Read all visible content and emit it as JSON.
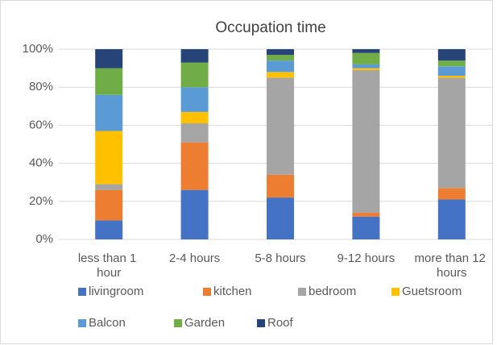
{
  "chart_data": {
    "type": "stacked_bar",
    "title": "Occupation time",
    "categories": [
      "less than 1 hour",
      "2-4 hours",
      "5-8 hours",
      "9-12 hours",
      "more than 12 hours"
    ],
    "series": [
      {
        "name": "livingroom",
        "color": "#4472c4",
        "values": [
          10,
          26,
          22,
          12,
          21
        ]
      },
      {
        "name": "kitchen",
        "color": "#ed7d31",
        "values": [
          16,
          25,
          12,
          2,
          6
        ]
      },
      {
        "name": "bedroom",
        "color": "#a5a5a5",
        "values": [
          3,
          10,
          51,
          75,
          58
        ]
      },
      {
        "name": "Guetsroom",
        "color": "#ffc000",
        "values": [
          28,
          6,
          3,
          1,
          1
        ]
      },
      {
        "name": "Balcon",
        "color": "#5b9bd5",
        "values": [
          19,
          13,
          6,
          2,
          5
        ]
      },
      {
        "name": "Garden",
        "color": "#70ad47",
        "values": [
          14,
          13,
          3,
          6,
          3
        ]
      },
      {
        "name": "Roof",
        "color": "#264478",
        "values": [
          10,
          7,
          3,
          2,
          6
        ]
      }
    ],
    "ylim": [
      0,
      100
    ],
    "yticks": [
      {
        "value": 0,
        "label": "0%"
      },
      {
        "value": 20,
        "label": "20%"
      },
      {
        "value": 40,
        "label": "40%"
      },
      {
        "value": 60,
        "label": "60%"
      },
      {
        "value": 80,
        "label": "80%"
      },
      {
        "value": 100,
        "label": "100%"
      }
    ],
    "grid": true
  }
}
